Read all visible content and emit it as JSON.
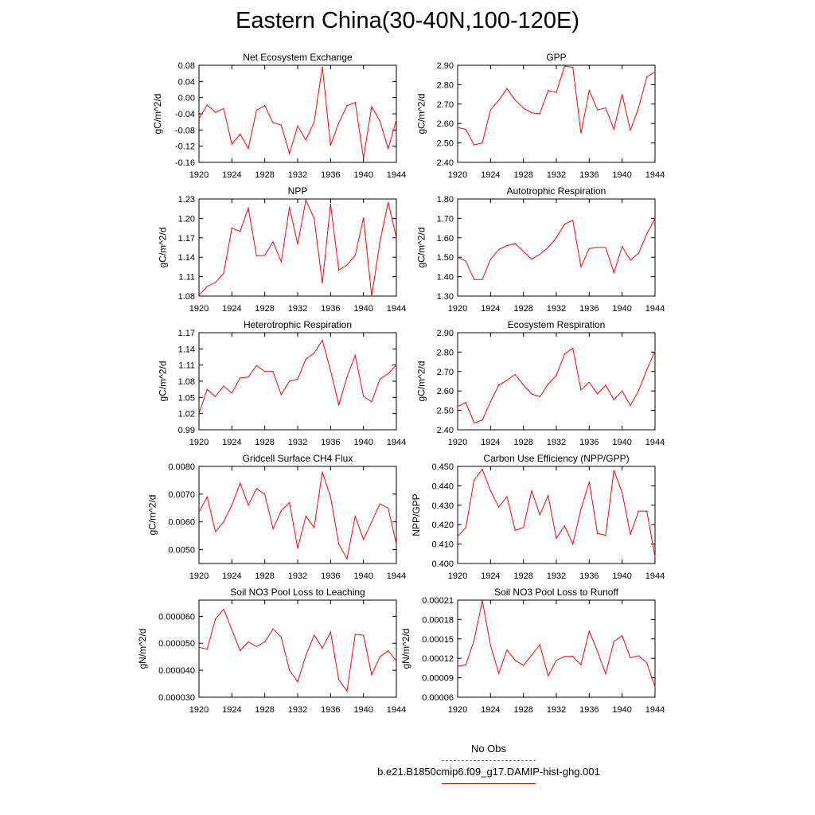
{
  "page": {
    "title": "Eastern China(30-40N,100-120E)",
    "line_color": "#ff0000",
    "obs_color": "#6a6ad8"
  },
  "legend": {
    "obs_label": "No Obs",
    "model_label": "b.e21.B1850cmip6.f09_g17.DAMIP-hist-ghg.001"
  },
  "chart_data": [
    {
      "type": "line",
      "title": "Net Ecosystem Exchange",
      "ylabel": "gC/m^2/d",
      "xlim": [
        1920,
        1944
      ],
      "ylim": [
        -0.16,
        0.08
      ],
      "xticks": [
        "1920",
        "1924",
        "1928",
        "1932",
        "1936",
        "1940",
        "1944"
      ],
      "yticks": [
        "-0.16",
        "-0.12",
        "-0.08",
        "-0.04",
        "0.00",
        "0.04",
        "0.08"
      ],
      "x": [
        1920,
        1921,
        1922,
        1923,
        1924,
        1925,
        1926,
        1927,
        1928,
        1929,
        1930,
        1931,
        1932,
        1933,
        1934,
        1935,
        1936,
        1937,
        1938,
        1939,
        1940,
        1941,
        1942,
        1943,
        1944
      ],
      "values": [
        -0.052,
        -0.018,
        -0.036,
        -0.027,
        -0.115,
        -0.09,
        -0.126,
        -0.031,
        -0.02,
        -0.062,
        -0.068,
        -0.138,
        -0.07,
        -0.105,
        -0.06,
        0.076,
        -0.118,
        -0.062,
        -0.02,
        -0.012,
        -0.15,
        -0.022,
        -0.058,
        -0.126,
        -0.055
      ]
    },
    {
      "type": "line",
      "title": "GPP",
      "ylabel": "gC/m^2/d",
      "xlim": [
        1920,
        1944
      ],
      "ylim": [
        2.4,
        2.9
      ],
      "xticks": [
        "1920",
        "1924",
        "1928",
        "1932",
        "1936",
        "1940",
        "1944"
      ],
      "yticks": [
        "2.40",
        "2.50",
        "2.60",
        "2.70",
        "2.80",
        "2.90"
      ],
      "x": [
        1920,
        1921,
        1922,
        1923,
        1924,
        1925,
        1926,
        1927,
        1928,
        1929,
        1930,
        1931,
        1932,
        1933,
        1934,
        1935,
        1936,
        1937,
        1938,
        1939,
        1940,
        1941,
        1942,
        1943,
        1944
      ],
      "values": [
        2.58,
        2.57,
        2.49,
        2.5,
        2.67,
        2.72,
        2.78,
        2.72,
        2.68,
        2.655,
        2.65,
        2.77,
        2.76,
        2.895,
        2.89,
        2.55,
        2.77,
        2.67,
        2.68,
        2.57,
        2.75,
        2.565,
        2.68,
        2.84,
        2.865
      ]
    },
    {
      "type": "line",
      "title": "NPP",
      "ylabel": "gC/m^2/d",
      "xlim": [
        1920,
        1944
      ],
      "ylim": [
        1.08,
        1.23
      ],
      "xticks": [
        "1920",
        "1924",
        "1928",
        "1932",
        "1936",
        "1940",
        "1944"
      ],
      "yticks": [
        "1.08",
        "1.11",
        "1.14",
        "1.17",
        "1.20",
        "1.23"
      ],
      "x": [
        1920,
        1921,
        1922,
        1923,
        1924,
        1925,
        1926,
        1927,
        1928,
        1929,
        1930,
        1931,
        1932,
        1933,
        1934,
        1935,
        1936,
        1937,
        1938,
        1939,
        1940,
        1941,
        1942,
        1943,
        1944
      ],
      "values": [
        1.081,
        1.095,
        1.101,
        1.115,
        1.185,
        1.18,
        1.216,
        1.142,
        1.143,
        1.164,
        1.133,
        1.217,
        1.16,
        1.228,
        1.2,
        1.1,
        1.222,
        1.12,
        1.128,
        1.143,
        1.201,
        1.08,
        1.163,
        1.225,
        1.17
      ]
    },
    {
      "type": "line",
      "title": "Autotrophic Respiration",
      "ylabel": "gC/m^2/d",
      "xlim": [
        1920,
        1944
      ],
      "ylim": [
        1.3,
        1.8
      ],
      "xticks": [
        "1920",
        "1924",
        "1928",
        "1932",
        "1936",
        "1940",
        "1944"
      ],
      "yticks": [
        "1.30",
        "1.40",
        "1.50",
        "1.60",
        "1.70",
        "1.80"
      ],
      "x": [
        1920,
        1921,
        1922,
        1923,
        1924,
        1925,
        1926,
        1927,
        1928,
        1929,
        1930,
        1931,
        1932,
        1933,
        1934,
        1935,
        1936,
        1937,
        1938,
        1939,
        1940,
        1941,
        1942,
        1943,
        1944
      ],
      "values": [
        1.5,
        1.48,
        1.385,
        1.385,
        1.49,
        1.54,
        1.56,
        1.57,
        1.53,
        1.49,
        1.515,
        1.55,
        1.6,
        1.67,
        1.69,
        1.45,
        1.545,
        1.55,
        1.55,
        1.42,
        1.555,
        1.485,
        1.52,
        1.62,
        1.7
      ]
    },
    {
      "type": "line",
      "title": "Heterotrophic Respiration",
      "ylabel": "gC/m^2/d",
      "xlim": [
        1920,
        1944
      ],
      "ylim": [
        0.99,
        1.17
      ],
      "xticks": [
        "1920",
        "1924",
        "1928",
        "1932",
        "1936",
        "1940",
        "1944"
      ],
      "yticks": [
        "0.99",
        "1.02",
        "1.05",
        "1.08",
        "1.11",
        "1.14",
        "1.17"
      ],
      "x": [
        1920,
        1921,
        1922,
        1923,
        1924,
        1925,
        1926,
        1927,
        1928,
        1929,
        1930,
        1931,
        1932,
        1933,
        1934,
        1935,
        1936,
        1937,
        1938,
        1939,
        1940,
        1941,
        1942,
        1943,
        1944
      ],
      "values": [
        1.02,
        1.065,
        1.052,
        1.071,
        1.058,
        1.086,
        1.088,
        1.109,
        1.098,
        1.098,
        1.055,
        1.08,
        1.084,
        1.121,
        1.132,
        1.156,
        1.1,
        1.036,
        1.088,
        1.128,
        1.052,
        1.042,
        1.084,
        1.094,
        1.11
      ]
    },
    {
      "type": "line",
      "title": "Ecosystem Respiration",
      "ylabel": "gC/m^2/d",
      "xlim": [
        1920,
        1944
      ],
      "ylim": [
        2.4,
        2.9
      ],
      "xticks": [
        "1920",
        "1924",
        "1928",
        "1932",
        "1936",
        "1940",
        "1944"
      ],
      "yticks": [
        "2.40",
        "2.50",
        "2.60",
        "2.70",
        "2.80",
        "2.90"
      ],
      "x": [
        1920,
        1921,
        1922,
        1923,
        1924,
        1925,
        1926,
        1927,
        1928,
        1929,
        1930,
        1931,
        1932,
        1933,
        1934,
        1935,
        1936,
        1937,
        1938,
        1939,
        1940,
        1941,
        1942,
        1943,
        1944
      ],
      "values": [
        2.52,
        2.54,
        2.435,
        2.45,
        2.545,
        2.63,
        2.655,
        2.685,
        2.63,
        2.585,
        2.57,
        2.635,
        2.68,
        2.79,
        2.82,
        2.605,
        2.645,
        2.585,
        2.63,
        2.555,
        2.6,
        2.525,
        2.6,
        2.71,
        2.805
      ]
    },
    {
      "type": "line",
      "title": "Gridcell Surface CH4 Flux",
      "ylabel": "gC/m^2/d",
      "xlim": [
        1920,
        1944
      ],
      "ylim": [
        0.0045,
        0.008
      ],
      "xticks": [
        "1920",
        "1924",
        "1928",
        "1932",
        "1936",
        "1940",
        "1944"
      ],
      "yticks": [
        "0.0050",
        "0.0060",
        "0.0070",
        "0.0080"
      ],
      "x": [
        1920,
        1921,
        1922,
        1923,
        1924,
        1925,
        1926,
        1927,
        1928,
        1929,
        1930,
        1931,
        1932,
        1933,
        1934,
        1935,
        1936,
        1937,
        1938,
        1939,
        1940,
        1941,
        1942,
        1943,
        1944
      ],
      "values": [
        0.00635,
        0.0069,
        0.00565,
        0.006,
        0.0066,
        0.0074,
        0.0066,
        0.0072,
        0.007,
        0.00575,
        0.0064,
        0.0067,
        0.00505,
        0.0062,
        0.0058,
        0.0078,
        0.0069,
        0.0052,
        0.00467,
        0.0062,
        0.00537,
        0.006,
        0.00665,
        0.0065,
        0.0052
      ]
    },
    {
      "type": "line",
      "title": "Carbon Use Efficiency (NPP/GPP)",
      "ylabel": "NPP/GPP",
      "xlim": [
        1920,
        1944
      ],
      "ylim": [
        0.4,
        0.45
      ],
      "xticks": [
        "1920",
        "1924",
        "1928",
        "1932",
        "1936",
        "1940",
        "1944"
      ],
      "yticks": [
        "0.400",
        "0.410",
        "0.420",
        "0.430",
        "0.440",
        "0.450"
      ],
      "x": [
        1920,
        1921,
        1922,
        1923,
        1924,
        1925,
        1926,
        1927,
        1928,
        1929,
        1930,
        1931,
        1932,
        1933,
        1934,
        1935,
        1936,
        1937,
        1938,
        1939,
        1940,
        1941,
        1942,
        1943,
        1944
      ],
      "values": [
        0.414,
        0.4185,
        0.443,
        0.4485,
        0.4375,
        0.429,
        0.4345,
        0.417,
        0.4185,
        0.4375,
        0.425,
        0.435,
        0.413,
        0.4195,
        0.41,
        0.428,
        0.442,
        0.4155,
        0.4145,
        0.448,
        0.4365,
        0.415,
        0.427,
        0.427,
        0.4035
      ]
    },
    {
      "type": "line",
      "title": "Soil NO3 Pool Loss to Leaching",
      "ylabel": "gN/m^2/d",
      "xlim": [
        1920,
        1944
      ],
      "ylim": [
        3e-05,
        6.6e-05
      ],
      "xticks": [
        "1920",
        "1924",
        "1928",
        "1932",
        "1936",
        "1940",
        "1944"
      ],
      "yticks": [
        "0.000030",
        "0.000040",
        "0.000050",
        "0.000060"
      ],
      "x": [
        1920,
        1921,
        1922,
        1923,
        1924,
        1925,
        1926,
        1927,
        1928,
        1929,
        1930,
        1931,
        1932,
        1933,
        1934,
        1935,
        1936,
        1937,
        1938,
        1939,
        1940,
        1941,
        1942,
        1943,
        1944
      ],
      "values": [
        4.85e-05,
        4.78e-05,
        5.9e-05,
        6.26e-05,
        5.5e-05,
        4.73e-05,
        5.05e-05,
        4.88e-05,
        5.05e-05,
        5.53e-05,
        5.23e-05,
        4e-05,
        3.57e-05,
        4.55e-05,
        5.3e-05,
        4.82e-05,
        5.42e-05,
        3.65e-05,
        3.22e-05,
        5.33e-05,
        5.3e-05,
        3.83e-05,
        4.5e-05,
        4.72e-05,
        4.35e-05
      ]
    },
    {
      "type": "line",
      "title": "Soil NO3 Pool Loss to Runoff",
      "ylabel": "gN/m^2/d",
      "xlim": [
        1920,
        1944
      ],
      "ylim": [
        6e-05,
        0.00021
      ],
      "xticks": [
        "1920",
        "1924",
        "1928",
        "1932",
        "1936",
        "1940",
        "1944"
      ],
      "yticks": [
        "0.00006",
        "0.00009",
        "0.00012",
        "0.00015",
        "0.00018",
        "0.00021"
      ],
      "x": [
        1920,
        1921,
        1922,
        1923,
        1924,
        1925,
        1926,
        1927,
        1928,
        1929,
        1930,
        1931,
        1932,
        1933,
        1934,
        1935,
        1936,
        1937,
        1938,
        1939,
        1940,
        1941,
        1942,
        1943,
        1944
      ],
      "values": [
        0.000108,
        0.00011,
        0.000148,
        0.000209,
        0.00014,
        9.7e-05,
        0.000133,
        0.000117,
        0.000109,
        0.000125,
        0.000141,
        9.3e-05,
        0.000117,
        0.000123,
        0.000123,
        0.00011,
        0.000162,
        0.000131,
        9.6e-05,
        0.000146,
        0.000155,
        0.000121,
        0.000124,
        0.000113,
        7.6e-05
      ]
    }
  ]
}
